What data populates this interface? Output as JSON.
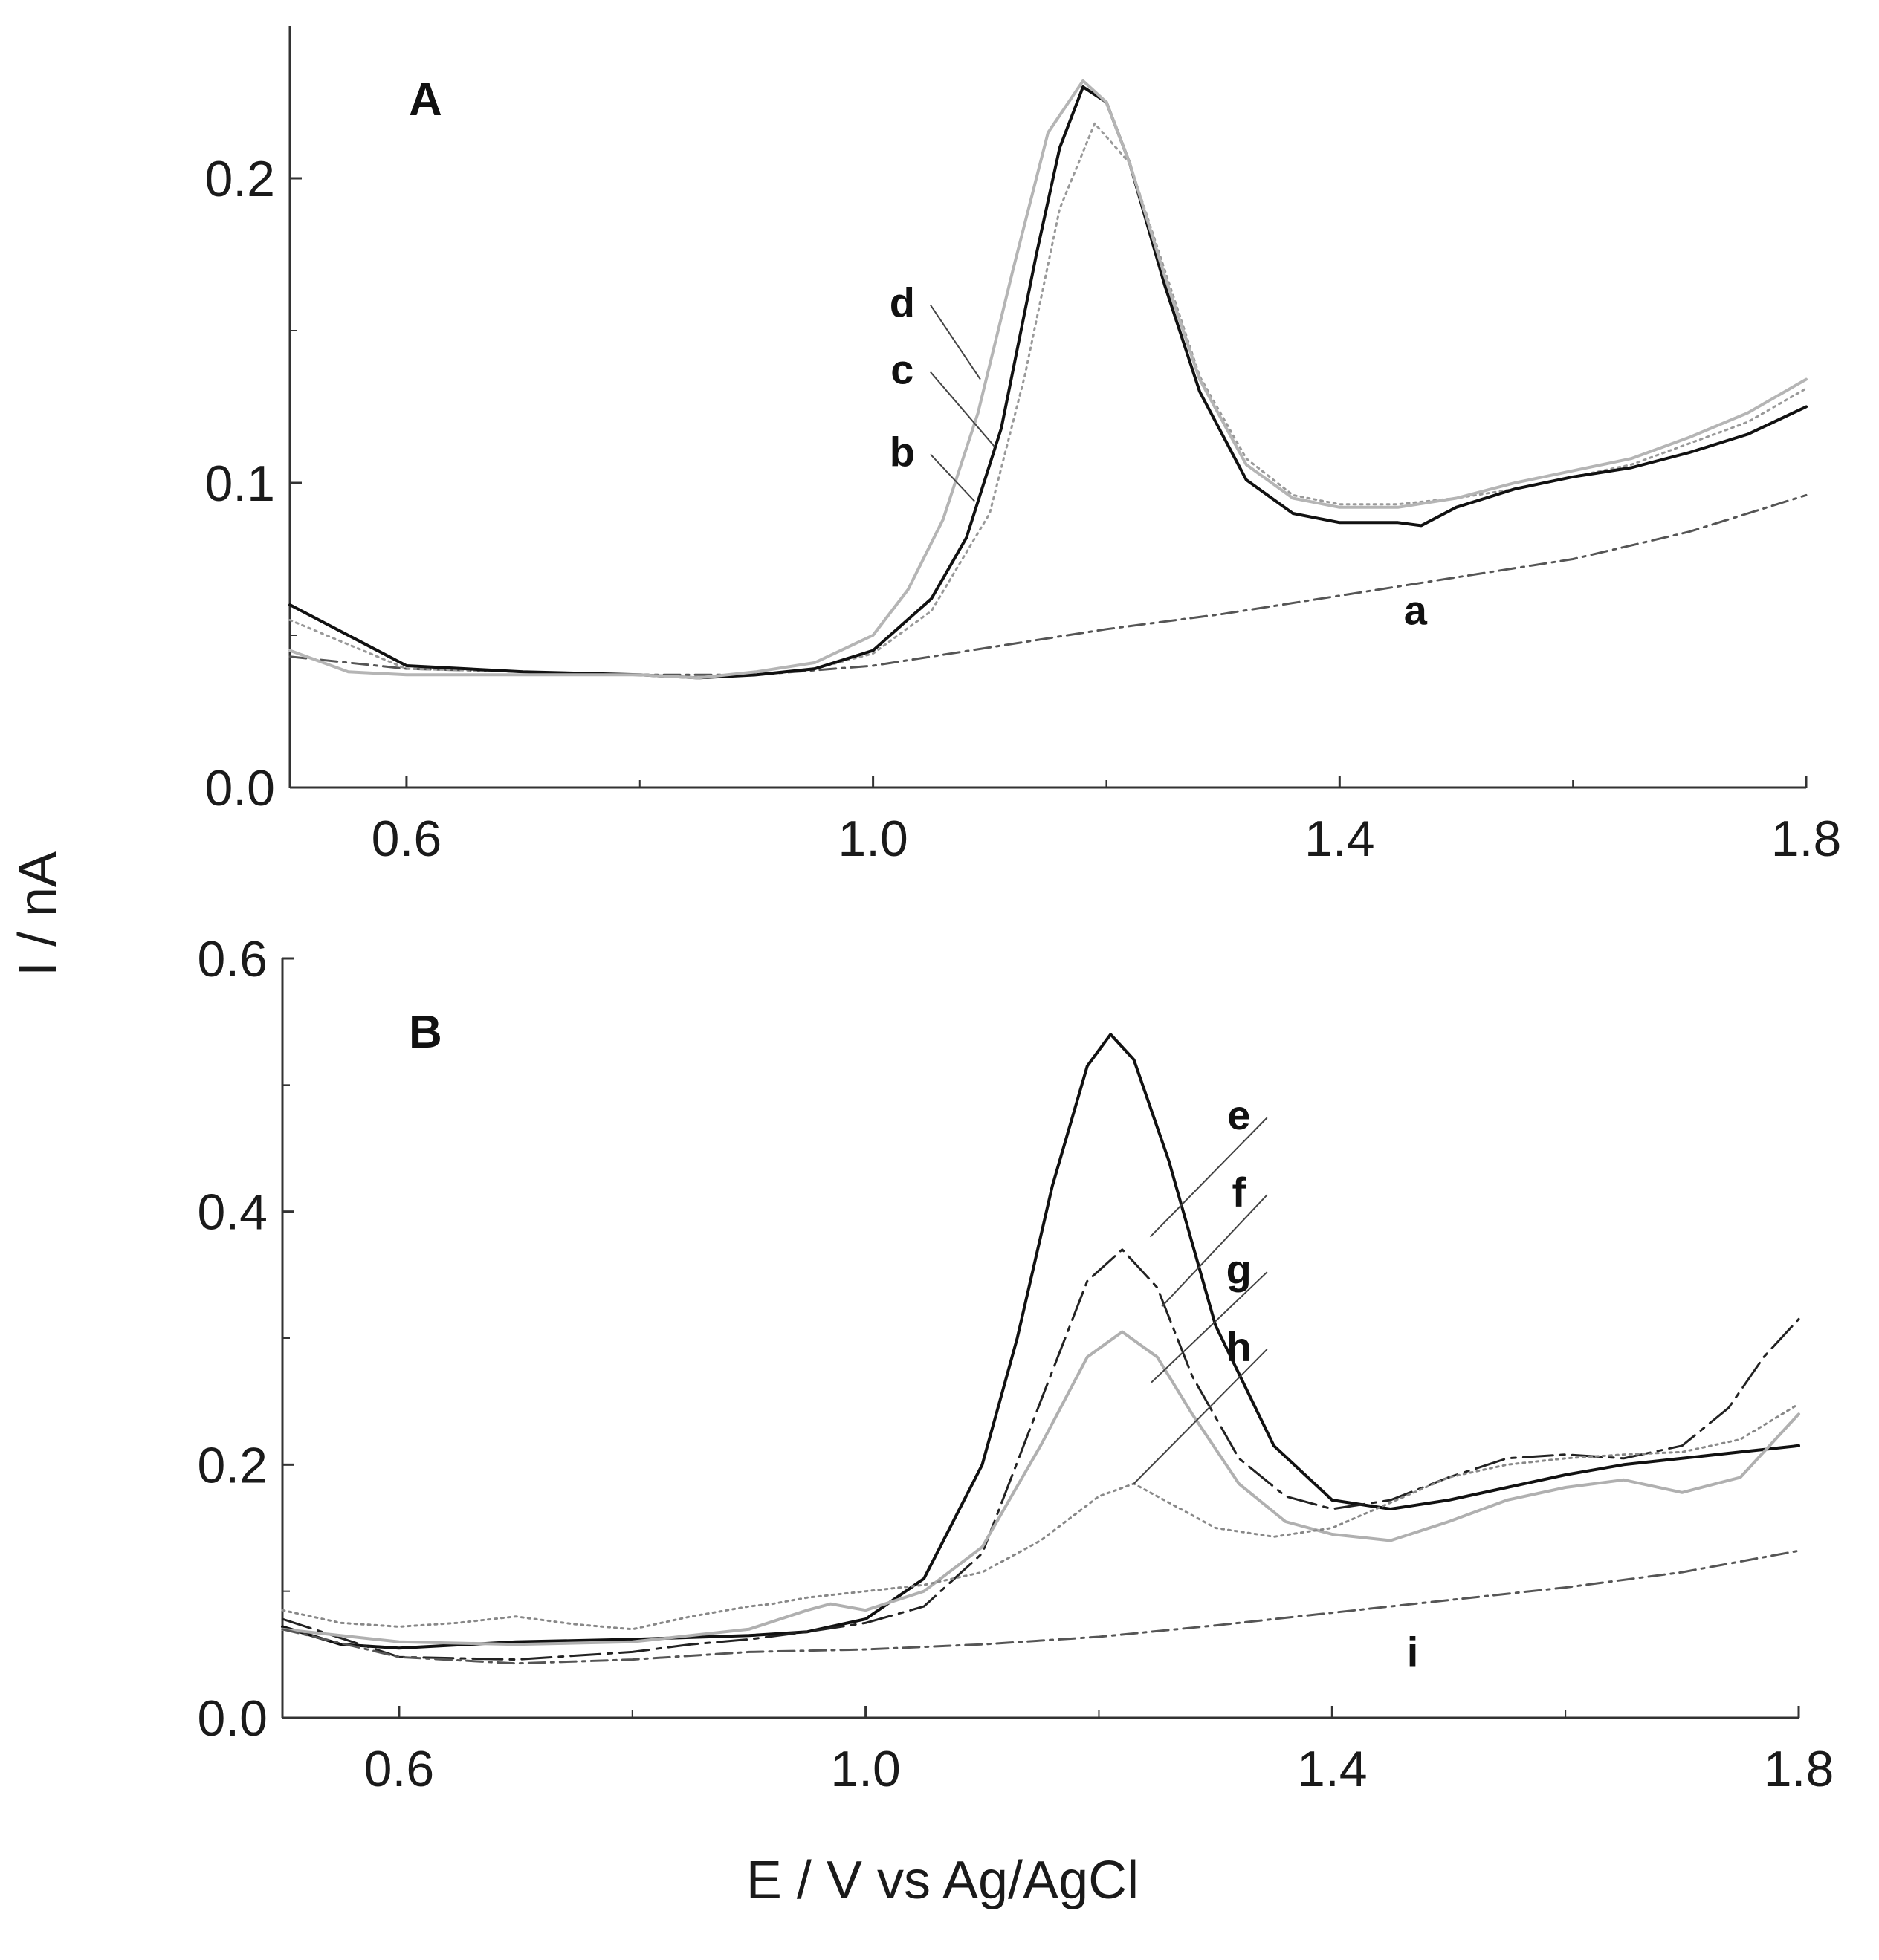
{
  "figure": {
    "ylabel": "I / nA",
    "xlabel": "E / V vs Ag/AgCl"
  },
  "chart_data": [
    {
      "type": "line",
      "panel": "A",
      "xlim": [
        0.5,
        1.8
      ],
      "ylim": [
        0.0,
        0.25
      ],
      "xticks": [
        0.6,
        1.0,
        1.4,
        1.8
      ],
      "xtick_labels": [
        "0.6",
        "1.0",
        "1.4",
        "1.8"
      ],
      "xminor": [
        0.8,
        1.2,
        1.6
      ],
      "yticks": [
        0.0,
        0.1,
        0.2
      ],
      "ytick_labels": [
        "0.0",
        "0.1",
        "0.2"
      ],
      "yminor": [
        0.05,
        0.15
      ],
      "grid": false,
      "series": [
        {
          "name": "a",
          "color": "#555555",
          "dash": "22,8,4,8",
          "width": 3,
          "x": [
            0.5,
            0.6,
            0.7,
            0.8,
            0.9,
            1.0,
            1.1,
            1.2,
            1.3,
            1.4,
            1.5,
            1.6,
            1.7,
            1.8
          ],
          "y": [
            0.043,
            0.039,
            0.038,
            0.037,
            0.037,
            0.04,
            0.046,
            0.052,
            0.057,
            0.063,
            0.069,
            0.075,
            0.084,
            0.096
          ]
        },
        {
          "name": "b",
          "color": "#999999",
          "dash": "3,6",
          "width": 3,
          "x": [
            0.5,
            0.6,
            0.7,
            0.8,
            0.85,
            0.9,
            0.95,
            1.0,
            1.05,
            1.1,
            1.13,
            1.16,
            1.19,
            1.22,
            1.25,
            1.28,
            1.32,
            1.36,
            1.4,
            1.45,
            1.5,
            1.55,
            1.6,
            1.65,
            1.7,
            1.75,
            1.8
          ],
          "y": [
            0.055,
            0.039,
            0.038,
            0.037,
            0.036,
            0.037,
            0.039,
            0.044,
            0.058,
            0.09,
            0.135,
            0.19,
            0.218,
            0.205,
            0.17,
            0.135,
            0.108,
            0.096,
            0.093,
            0.093,
            0.095,
            0.098,
            0.102,
            0.106,
            0.113,
            0.12,
            0.131
          ]
        },
        {
          "name": "c",
          "color": "#111111",
          "dash": "",
          "width": 4,
          "x": [
            0.5,
            0.6,
            0.7,
            0.8,
            0.85,
            0.9,
            0.95,
            1.0,
            1.05,
            1.08,
            1.11,
            1.14,
            1.16,
            1.18,
            1.2,
            1.22,
            1.25,
            1.28,
            1.32,
            1.36,
            1.4,
            1.45,
            1.47,
            1.5,
            1.55,
            1.6,
            1.65,
            1.7,
            1.75,
            1.8
          ],
          "y": [
            0.06,
            0.04,
            0.038,
            0.037,
            0.036,
            0.037,
            0.039,
            0.045,
            0.062,
            0.082,
            0.118,
            0.175,
            0.21,
            0.23,
            0.225,
            0.205,
            0.165,
            0.13,
            0.101,
            0.09,
            0.087,
            0.087,
            0.086,
            0.092,
            0.098,
            0.102,
            0.105,
            0.11,
            0.116,
            0.125
          ]
        },
        {
          "name": "d",
          "color": "#b5b5b5",
          "dash": "",
          "width": 4,
          "x": [
            0.5,
            0.55,
            0.6,
            0.7,
            0.8,
            0.85,
            0.9,
            0.95,
            1.0,
            1.03,
            1.06,
            1.09,
            1.12,
            1.15,
            1.18,
            1.2,
            1.22,
            1.25,
            1.28,
            1.32,
            1.36,
            1.4,
            1.45,
            1.5,
            1.55,
            1.6,
            1.65,
            1.7,
            1.75,
            1.8
          ],
          "y": [
            0.045,
            0.038,
            0.037,
            0.037,
            0.037,
            0.036,
            0.038,
            0.041,
            0.05,
            0.065,
            0.088,
            0.123,
            0.17,
            0.215,
            0.232,
            0.225,
            0.205,
            0.168,
            0.134,
            0.106,
            0.095,
            0.092,
            0.092,
            0.095,
            0.1,
            0.104,
            0.108,
            0.115,
            0.123,
            0.134
          ]
        }
      ],
      "annotations": [
        {
          "text": "d",
          "x": 1.025,
          "y": 0.155,
          "tx": 1.092,
          "ty": 0.134
        },
        {
          "text": "c",
          "x": 1.025,
          "y": 0.133,
          "tx": 1.104,
          "ty": 0.112
        },
        {
          "text": "b",
          "x": 1.025,
          "y": 0.106,
          "tx": 1.087,
          "ty": 0.094
        },
        {
          "text": "a",
          "x": 1.465,
          "y": 0.054
        }
      ]
    },
    {
      "type": "line",
      "panel": "B",
      "xlim": [
        0.5,
        1.8
      ],
      "ylim": [
        0.0,
        0.6
      ],
      "xticks": [
        0.6,
        1.0,
        1.4,
        1.8
      ],
      "xtick_labels": [
        "0.6",
        "1.0",
        "1.4",
        "1.8"
      ],
      "xminor": [
        0.8,
        1.2,
        1.6
      ],
      "yticks": [
        0.0,
        0.2,
        0.4,
        0.6
      ],
      "ytick_labels": [
        "0.0",
        "0.2",
        "0.4",
        "0.6"
      ],
      "yminor": [
        0.1,
        0.3,
        0.5
      ],
      "grid": false,
      "series": [
        {
          "name": "e",
          "color": "#111111",
          "dash": "",
          "width": 4,
          "x": [
            0.5,
            0.55,
            0.6,
            0.7,
            0.8,
            0.9,
            0.95,
            1.0,
            1.05,
            1.1,
            1.13,
            1.16,
            1.19,
            1.21,
            1.23,
            1.26,
            1.3,
            1.35,
            1.4,
            1.45,
            1.5,
            1.55,
            1.6,
            1.65,
            1.7,
            1.75,
            1.8
          ],
          "y": [
            0.072,
            0.058,
            0.055,
            0.06,
            0.062,
            0.065,
            0.068,
            0.078,
            0.11,
            0.2,
            0.3,
            0.42,
            0.515,
            0.54,
            0.52,
            0.44,
            0.31,
            0.215,
            0.172,
            0.165,
            0.172,
            0.182,
            0.192,
            0.2,
            0.205,
            0.21,
            0.215
          ]
        },
        {
          "name": "f",
          "color": "#222222",
          "dash": "40,10,6,10",
          "width": 3,
          "x": [
            0.5,
            0.6,
            0.7,
            0.8,
            0.85,
            0.9,
            0.95,
            1.0,
            1.05,
            1.1,
            1.15,
            1.19,
            1.22,
            1.25,
            1.28,
            1.32,
            1.36,
            1.4,
            1.45,
            1.5,
            1.55,
            1.6,
            1.65,
            1.7,
            1.74,
            1.77,
            1.8
          ],
          "y": [
            0.078,
            0.048,
            0.046,
            0.052,
            0.058,
            0.062,
            0.068,
            0.075,
            0.088,
            0.13,
            0.25,
            0.345,
            0.37,
            0.34,
            0.27,
            0.205,
            0.175,
            0.165,
            0.172,
            0.19,
            0.205,
            0.208,
            0.205,
            0.215,
            0.245,
            0.285,
            0.315
          ]
        },
        {
          "name": "g",
          "color": "#b0b0b0",
          "dash": "",
          "width": 4,
          "x": [
            0.5,
            0.6,
            0.7,
            0.8,
            0.9,
            0.95,
            0.97,
            1.0,
            1.05,
            1.1,
            1.15,
            1.19,
            1.22,
            1.25,
            1.28,
            1.32,
            1.36,
            1.4,
            1.45,
            1.5,
            1.55,
            1.6,
            1.65,
            1.7,
            1.75,
            1.8
          ],
          "y": [
            0.07,
            0.06,
            0.058,
            0.06,
            0.07,
            0.085,
            0.09,
            0.085,
            0.1,
            0.135,
            0.215,
            0.285,
            0.305,
            0.285,
            0.24,
            0.185,
            0.155,
            0.145,
            0.14,
            0.155,
            0.172,
            0.182,
            0.188,
            0.178,
            0.19,
            0.24
          ]
        },
        {
          "name": "h",
          "color": "#888888",
          "dash": "3,6",
          "width": 3,
          "x": [
            0.5,
            0.55,
            0.6,
            0.65,
            0.7,
            0.75,
            0.8,
            0.85,
            0.9,
            0.92,
            0.95,
            1.0,
            1.05,
            1.1,
            1.15,
            1.2,
            1.23,
            1.26,
            1.3,
            1.35,
            1.4,
            1.45,
            1.5,
            1.55,
            1.6,
            1.65,
            1.7,
            1.75,
            1.8
          ],
          "y": [
            0.085,
            0.075,
            0.072,
            0.075,
            0.08,
            0.074,
            0.07,
            0.08,
            0.088,
            0.09,
            0.095,
            0.1,
            0.105,
            0.115,
            0.14,
            0.175,
            0.185,
            0.17,
            0.15,
            0.143,
            0.15,
            0.17,
            0.19,
            0.2,
            0.205,
            0.208,
            0.21,
            0.22,
            0.248
          ]
        },
        {
          "name": "i",
          "color": "#555555",
          "dash": "22,8,4,8",
          "width": 3,
          "x": [
            0.5,
            0.6,
            0.7,
            0.8,
            0.9,
            1.0,
            1.1,
            1.2,
            1.3,
            1.4,
            1.5,
            1.6,
            1.7,
            1.8
          ],
          "y": [
            0.07,
            0.048,
            0.043,
            0.046,
            0.052,
            0.054,
            0.058,
            0.064,
            0.073,
            0.083,
            0.093,
            0.103,
            0.115,
            0.132
          ]
        }
      ],
      "annotations": [
        {
          "text": "e",
          "x": 1.32,
          "y": 0.466,
          "tx": 1.244,
          "ty": 0.38
        },
        {
          "text": "f",
          "x": 1.32,
          "y": 0.405,
          "tx": 1.254,
          "ty": 0.325
        },
        {
          "text": "g",
          "x": 1.32,
          "y": 0.344,
          "tx": 1.245,
          "ty": 0.265
        },
        {
          "text": "h",
          "x": 1.32,
          "y": 0.283,
          "tx": 1.23,
          "ty": 0.185
        },
        {
          "text": "i",
          "x": 1.469,
          "y": 0.042
        }
      ]
    }
  ]
}
